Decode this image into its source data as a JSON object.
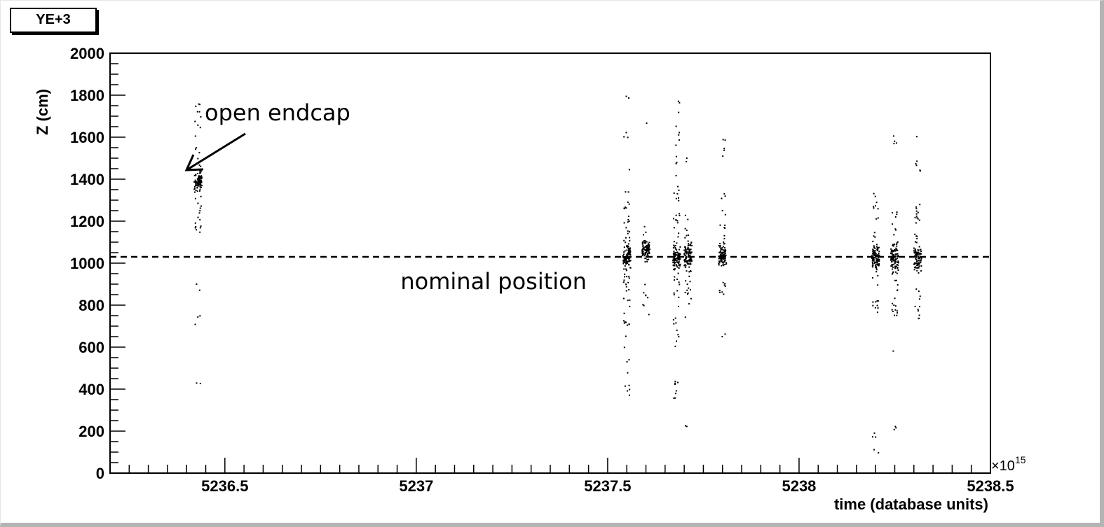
{
  "chart_data": {
    "type": "scatter",
    "title": "YE+3",
    "xlabel": "time (database units)",
    "ylabel": "Z (cm)",
    "x_multiplier_label": "×10",
    "x_multiplier_exp": "15",
    "xlim": [
      5236.2,
      5238.5
    ],
    "ylim": [
      0,
      2000
    ],
    "x_ticks": [
      5236.5,
      5237,
      5237.5,
      5238,
      5238.5
    ],
    "x_tick_labels": [
      "5236.5",
      "5237",
      "5237.5",
      "5238",
      "5238.5"
    ],
    "y_ticks": [
      0,
      200,
      400,
      600,
      800,
      1000,
      1200,
      1400,
      1600,
      1800,
      2000
    ],
    "y_tick_labels": [
      "0",
      "200",
      "400",
      "600",
      "800",
      "1000",
      "1200",
      "1400",
      "1600",
      "1800",
      "2000"
    ],
    "grid": false,
    "legend": "none",
    "reference_line": {
      "y": 1030,
      "style": "dashed",
      "label": "nominal position"
    },
    "annotation": {
      "text": "open endcap",
      "points_to": [
        5236.43,
        1400
      ]
    },
    "clusters": [
      {
        "x": 5236.43,
        "center": 1390,
        "spread": 40,
        "sub": [
          [
            1140,
            1780,
            40
          ],
          [
            660,
            940,
            5
          ],
          [
            420,
            430,
            2
          ]
        ]
      },
      {
        "x": 5237.55,
        "center": 1030,
        "spread": 50,
        "sub": [
          [
            700,
            1310,
            50
          ],
          [
            340,
            1850,
            30
          ]
        ]
      },
      {
        "x": 5237.6,
        "center": 1060,
        "spread": 50,
        "sub": [
          [
            700,
            1190,
            12
          ],
          [
            1650,
            1680,
            1
          ]
        ]
      },
      {
        "x": 5237.68,
        "center": 1020,
        "spread": 50,
        "sub": [
          [
            600,
            1380,
            45
          ],
          [
            310,
            460,
            8
          ],
          [
            1400,
            1810,
            12
          ]
        ]
      },
      {
        "x": 5237.71,
        "center": 1040,
        "spread": 60,
        "sub": [
          [
            730,
            1230,
            30
          ],
          [
            210,
            230,
            2
          ],
          [
            1460,
            1500,
            2
          ]
        ]
      },
      {
        "x": 5237.8,
        "center": 1030,
        "spread": 50,
        "sub": [
          [
            850,
            1340,
            30
          ],
          [
            1500,
            1590,
            5
          ],
          [
            650,
            680,
            2
          ]
        ]
      },
      {
        "x": 5238.2,
        "center": 1030,
        "spread": 50,
        "sub": [
          [
            760,
            1350,
            35
          ],
          [
            90,
            270,
            5
          ],
          [
            810,
            820,
            1
          ]
        ]
      },
      {
        "x": 5238.25,
        "center": 1020,
        "spread": 60,
        "sub": [
          [
            740,
            1250,
            35
          ],
          [
            200,
            230,
            3
          ],
          [
            1560,
            1610,
            4
          ],
          [
            580,
            590,
            1
          ]
        ]
      },
      {
        "x": 5238.31,
        "center": 1020,
        "spread": 60,
        "sub": [
          [
            730,
            1280,
            30
          ],
          [
            1390,
            1620,
            6
          ]
        ]
      }
    ]
  }
}
